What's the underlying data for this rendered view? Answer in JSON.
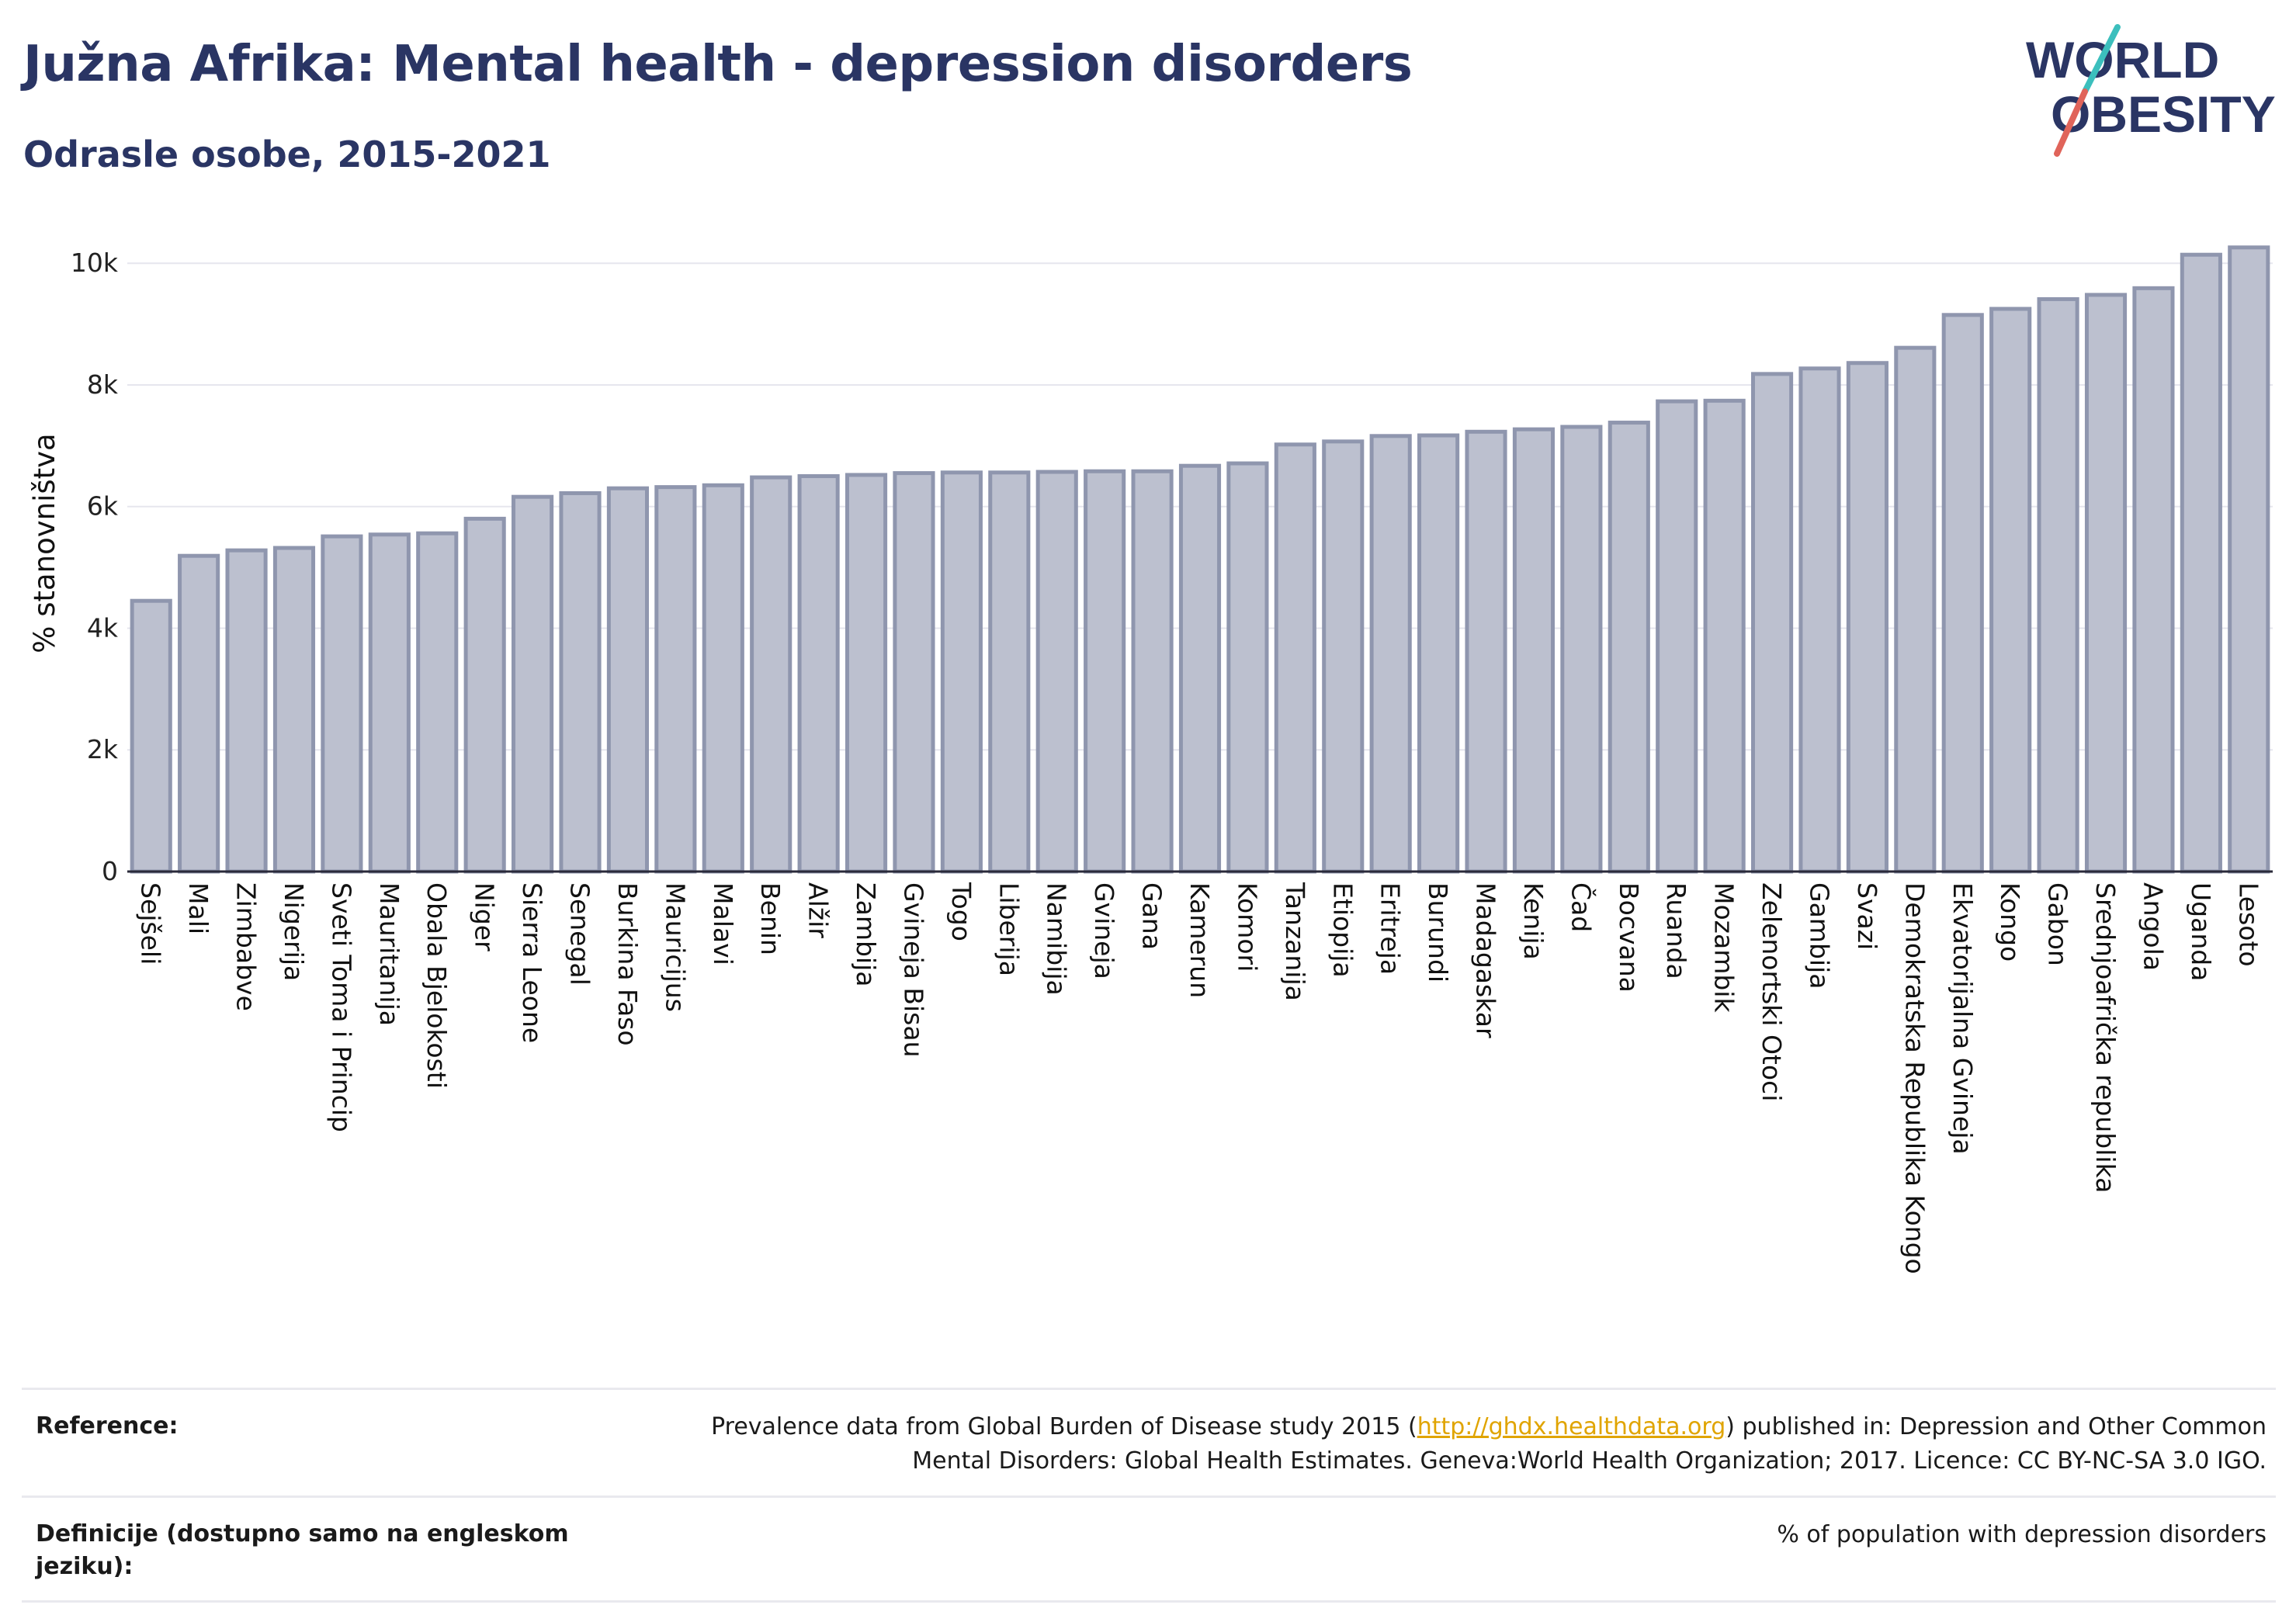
{
  "header": {
    "title": "Južna Afrika: Mental health - depression disorders",
    "subtitle": "Odrasle osobe, 2015-2021"
  },
  "logo": {
    "line1": "WORLD",
    "line2": "OBESITY",
    "colors": {
      "text": "#2a3564",
      "slash_teal": "#3cbfbd",
      "slash_red": "#e0645a"
    }
  },
  "colors": {
    "bar_fill": "#bcc0cf",
    "bar_stroke": "#8f96ae",
    "title": "#2a3564",
    "link": "#e0a400",
    "grid": "#e6e6ee"
  },
  "chart_data": {
    "type": "bar",
    "title": "Južna Afrika: Mental health - depression disorders",
    "subtitle": "Odrasle osobe, 2015-2021",
    "ylabel": "% stanovništva",
    "xlabel": "",
    "ylim": [
      0,
      10500
    ],
    "yticks": [
      0,
      2000,
      4000,
      6000,
      8000,
      10000
    ],
    "ytick_labels": [
      "0",
      "2k",
      "4k",
      "6k",
      "8k",
      "10k"
    ],
    "grid": true,
    "categories": [
      "Sejšeli",
      "Mali",
      "Zimbabve",
      "Nigerija",
      "Sveti Toma i Princip",
      "Mauritanija",
      "Obala Bjelokosti",
      "Niger",
      "Sierra Leone",
      "Senegal",
      "Burkina Faso",
      "Mauricijus",
      "Malavi",
      "Benin",
      "Alžir",
      "Zambija",
      "Gvineja Bisau",
      "Togo",
      "Liberija",
      "Namibija",
      "Gvineja",
      "Gana",
      "Kamerun",
      "Komori",
      "Tanzanija",
      "Etiopija",
      "Eritreja",
      "Burundi",
      "Madagaskar",
      "Kenija",
      "Čad",
      "Bocvana",
      "Ruanda",
      "Mozambik",
      "Zelenortski Otoci",
      "Gambija",
      "Svazi",
      "Demokratska Republika Kongo",
      "Ekvatorijalna Gvineja",
      "Kongo",
      "Gabon",
      "Srednjoafrička republika",
      "Angola",
      "Uganda",
      "Lesoto"
    ],
    "values": [
      4450,
      5190,
      5280,
      5320,
      5510,
      5540,
      5560,
      5800,
      6160,
      6220,
      6300,
      6320,
      6350,
      6480,
      6500,
      6520,
      6550,
      6560,
      6560,
      6570,
      6580,
      6580,
      6670,
      6710,
      7020,
      7070,
      7160,
      7170,
      7230,
      7270,
      7310,
      7380,
      7730,
      7740,
      8180,
      8270,
      8360,
      8610,
      9150,
      9250,
      9410,
      9480,
      9590,
      10140,
      10260
    ]
  },
  "footer": {
    "reference_label": "Reference:",
    "reference_pre": "Prevalence data from Global Burden of Disease study 2015 (",
    "reference_link": "http://ghdx.healthdata.org",
    "reference_post1": ") published in: Depression and Other Common",
    "reference_line2": "Mental Disorders: Global Health Estimates. Geneva:World Health Organization; 2017. Licence: CC BY-NC-SA 3.0 IGO.",
    "definition_label": "Definicije (dostupno samo na engleskom jeziku):",
    "definition_text": "% of population with depression disorders"
  }
}
